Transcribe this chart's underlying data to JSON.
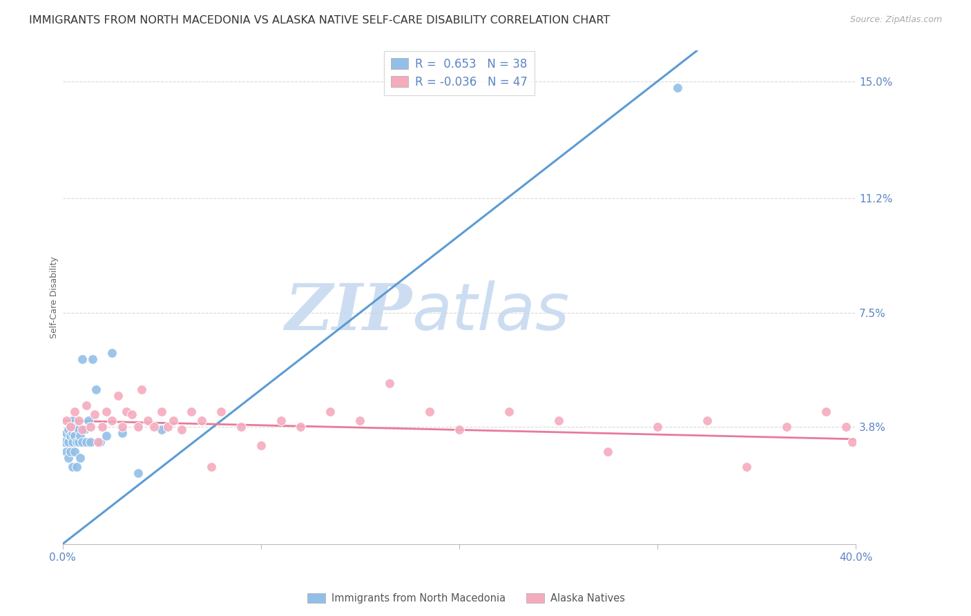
{
  "title": "IMMIGRANTS FROM NORTH MACEDONIA VS ALASKA NATIVE SELF-CARE DISABILITY CORRELATION CHART",
  "source": "Source: ZipAtlas.com",
  "ylabel": "Self-Care Disability",
  "right_yticks": [
    "15.0%",
    "11.2%",
    "7.5%",
    "3.8%"
  ],
  "right_ytick_vals": [
    0.15,
    0.112,
    0.075,
    0.038
  ],
  "xlim": [
    0.0,
    0.4
  ],
  "ylim": [
    0.0,
    0.16
  ],
  "legend_r_blue": "0.653",
  "legend_n_blue": "38",
  "legend_r_pink": "-0.036",
  "legend_n_pink": "47",
  "blue_color": "#92BFE8",
  "pink_color": "#F4ABBE",
  "blue_line_color": "#5B9BD5",
  "pink_line_color": "#E8799A",
  "background_color": "#FFFFFF",
  "grid_color": "#D8D8D8",
  "blue_scatter_x": [
    0.001,
    0.002,
    0.002,
    0.003,
    0.003,
    0.003,
    0.004,
    0.004,
    0.004,
    0.005,
    0.005,
    0.005,
    0.005,
    0.006,
    0.006,
    0.006,
    0.007,
    0.007,
    0.007,
    0.008,
    0.008,
    0.009,
    0.009,
    0.01,
    0.01,
    0.011,
    0.012,
    0.013,
    0.014,
    0.015,
    0.017,
    0.019,
    0.022,
    0.025,
    0.03,
    0.038,
    0.05,
    0.31
  ],
  "blue_scatter_y": [
    0.033,
    0.03,
    0.036,
    0.028,
    0.033,
    0.037,
    0.03,
    0.035,
    0.038,
    0.025,
    0.033,
    0.036,
    0.04,
    0.03,
    0.035,
    0.038,
    0.025,
    0.033,
    0.038,
    0.033,
    0.037,
    0.028,
    0.035,
    0.033,
    0.06,
    0.037,
    0.033,
    0.04,
    0.033,
    0.06,
    0.05,
    0.033,
    0.035,
    0.062,
    0.036,
    0.023,
    0.037,
    0.148
  ],
  "pink_scatter_x": [
    0.002,
    0.004,
    0.006,
    0.008,
    0.01,
    0.012,
    0.014,
    0.016,
    0.018,
    0.02,
    0.022,
    0.025,
    0.028,
    0.03,
    0.032,
    0.035,
    0.038,
    0.04,
    0.043,
    0.046,
    0.05,
    0.053,
    0.056,
    0.06,
    0.065,
    0.07,
    0.075,
    0.08,
    0.09,
    0.1,
    0.11,
    0.12,
    0.135,
    0.15,
    0.165,
    0.185,
    0.2,
    0.225,
    0.25,
    0.275,
    0.3,
    0.325,
    0.345,
    0.365,
    0.385,
    0.395,
    0.398
  ],
  "pink_scatter_y": [
    0.04,
    0.038,
    0.043,
    0.04,
    0.037,
    0.045,
    0.038,
    0.042,
    0.033,
    0.038,
    0.043,
    0.04,
    0.048,
    0.038,
    0.043,
    0.042,
    0.038,
    0.05,
    0.04,
    0.038,
    0.043,
    0.038,
    0.04,
    0.037,
    0.043,
    0.04,
    0.025,
    0.043,
    0.038,
    0.032,
    0.04,
    0.038,
    0.043,
    0.04,
    0.052,
    0.043,
    0.037,
    0.043,
    0.04,
    0.03,
    0.038,
    0.04,
    0.025,
    0.038,
    0.043,
    0.038,
    0.033
  ],
  "blue_trend_x0": 0.0,
  "blue_trend_y0": 0.0,
  "blue_trend_x1": 0.32,
  "blue_trend_y1": 0.16,
  "pink_trend_x0": 0.0,
  "pink_trend_y0": 0.04,
  "pink_trend_x1": 0.4,
  "pink_trend_y1": 0.034,
  "title_fontsize": 11.5,
  "source_fontsize": 9,
  "axis_label_fontsize": 9,
  "tick_fontsize": 11,
  "legend_fontsize": 12,
  "marker_size": 100
}
